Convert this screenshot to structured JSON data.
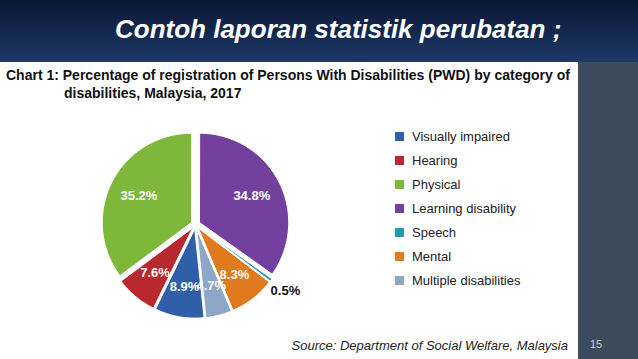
{
  "heading": "Contoh laporan statistik perubatan ;",
  "page_number": "15",
  "chart_data": {
    "type": "pie",
    "title": "Chart 1: Percentage of registration of Persons With Disabilities (PWD) by category of disabilities, Malaysia, 2017",
    "categories": [
      "Visually impaired",
      "Hearing",
      "Physical",
      "Learning disability",
      "Speech",
      "Mental",
      "Multiple disabilities"
    ],
    "values": [
      8.9,
      7.6,
      35.2,
      34.8,
      0.5,
      8.3,
      4.7
    ],
    "value_labels": [
      "8.9%",
      "7.6%",
      "35.2%",
      "34.8%",
      "0.5%",
      "8.3%",
      "4.7%"
    ],
    "colors": [
      "#2e5fa8",
      "#b8282e",
      "#7db83a",
      "#7340a0",
      "#1f9bb0",
      "#e07a1f",
      "#8ea6c8"
    ],
    "data_labels": true,
    "legend": "right",
    "source": "Source: Department of Social Welfare, Malaysia"
  }
}
